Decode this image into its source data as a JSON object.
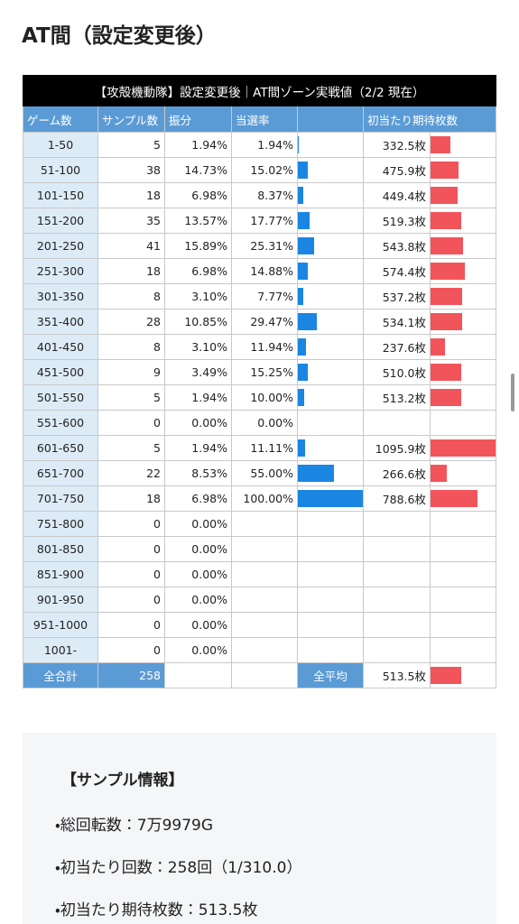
{
  "title": "AT間（設定変更後）",
  "table": {
    "caption": "【攻殻機動隊】設定変更後｜AT間ゾーン実戦値（2/2 現在）",
    "headers": [
      "ゲーム数",
      "サンプル数",
      "振分",
      "当選率",
      "初当たり期待枚数"
    ],
    "rows": [
      [
        "1-50",
        5,
        "1.94%",
        "1.94%",
        "332.5枚"
      ],
      [
        "51-100",
        38,
        "14.73%",
        "15.02%",
        "475.9枚"
      ],
      [
        "101-150",
        18,
        "6.98%",
        "8.37%",
        "449.4枚"
      ],
      [
        "151-200",
        35,
        "13.57%",
        "17.77%",
        "519.3枚"
      ],
      [
        "201-250",
        41,
        "15.89%",
        "25.31%",
        "543.8枚"
      ],
      [
        "251-300",
        18,
        "6.98%",
        "14.88%",
        "574.4枚"
      ],
      [
        "301-350",
        8,
        "3.10%",
        "7.77%",
        "537.2枚"
      ],
      [
        "351-400",
        28,
        "10.85%",
        "29.47%",
        "534.1枚"
      ],
      [
        "401-450",
        8,
        "3.10%",
        "11.94%",
        "237.6枚"
      ],
      [
        "451-500",
        9,
        "3.49%",
        "15.25%",
        "510.0枚"
      ],
      [
        "501-550",
        5,
        "1.94%",
        "10.00%",
        "513.2枚"
      ],
      [
        "551-600",
        0,
        "0.00%",
        "0.00%",
        null
      ],
      [
        "601-650",
        5,
        "1.94%",
        "11.11%",
        "1095.9枚"
      ],
      [
        "651-700",
        22,
        "8.53%",
        "55.00%",
        "266.6枚"
      ],
      [
        "701-750",
        18,
        "6.98%",
        "100.00%",
        "788.6枚"
      ],
      [
        "751-800",
        0,
        "0.00%",
        null,
        null
      ],
      [
        "801-850",
        0,
        "0.00%",
        null,
        null
      ],
      [
        "851-900",
        0,
        "0.00%",
        null,
        null
      ],
      [
        "901-950",
        0,
        "0.00%",
        null,
        null
      ],
      [
        "951-1000",
        0,
        "0.00%",
        null,
        null
      ],
      [
        "1001-",
        0,
        "0.00%",
        null,
        null
      ]
    ],
    "total": {
      "label": "全合計",
      "samples": 258,
      "avg_label": "全平均",
      "avg_expected": "513.5枚"
    }
  },
  "info": {
    "title": "【サンプル情報】",
    "items": [
      "・総回転数：7万9979G",
      "・初当たり回数：258回（1/310.0）",
      "・初当たり期待枚数：513.5枚"
    ]
  }
}
